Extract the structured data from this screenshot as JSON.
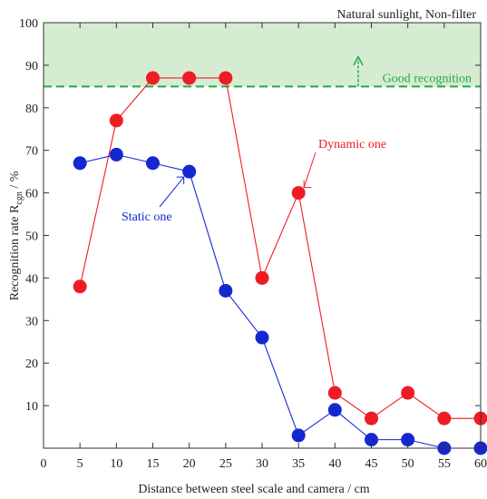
{
  "chart_data": {
    "type": "line",
    "title": "Natural sunlight, Non-filter",
    "xlabel": "Distance between steel scale and camera / cm",
    "ylabel_main": "Recognition rate R",
    "ylabel_sub": "cgn",
    "ylabel_unit": " / %",
    "xlim": [
      0,
      60
    ],
    "ylim": [
      0,
      100
    ],
    "xticks": [
      0,
      5,
      10,
      15,
      20,
      25,
      30,
      35,
      40,
      45,
      50,
      55,
      60
    ],
    "yticks": [
      10,
      20,
      30,
      40,
      50,
      60,
      70,
      80,
      90,
      100
    ],
    "grid": false,
    "threshold": {
      "value": 85,
      "label": "Good recognition",
      "color": "#22aa44",
      "band_color": "#d6ecd2"
    },
    "series": [
      {
        "name": "Dynamic one",
        "color": "#ee1c24",
        "x": [
          5,
          10,
          15,
          20,
          25,
          30,
          35,
          40,
          45,
          50,
          55,
          60
        ],
        "y": [
          38,
          77,
          87,
          87,
          87,
          40,
          60,
          13,
          7,
          13,
          7,
          7
        ]
      },
      {
        "name": "Static one",
        "color": "#1428d2",
        "x": [
          5,
          10,
          15,
          20,
          25,
          30,
          35,
          40,
          45,
          50,
          55,
          60
        ],
        "y": [
          67,
          69,
          67,
          65,
          37,
          26,
          3,
          9,
          2,
          2,
          0,
          0
        ]
      }
    ]
  }
}
